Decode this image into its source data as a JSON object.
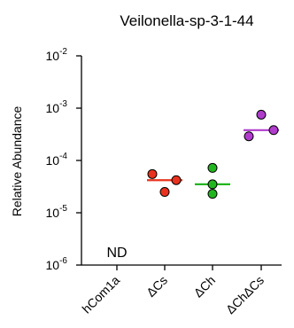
{
  "chart_data": {
    "type": "scatter",
    "title": "Veilonella-sp-3-1-44",
    "ylabel": "Relative Abundance",
    "yscale": "log",
    "ylim": [
      1e-06,
      0.01
    ],
    "yticks": [
      {
        "value": 0.01,
        "base": "10",
        "exp": "-2"
      },
      {
        "value": 0.001,
        "base": "10",
        "exp": "-3"
      },
      {
        "value": 0.0001,
        "base": "10",
        "exp": "-4"
      },
      {
        "value": 1e-05,
        "base": "10",
        "exp": "-5"
      },
      {
        "value": 1e-06,
        "base": "10",
        "exp": "-6"
      }
    ],
    "categories": [
      "hCom1a",
      "ΔCs",
      "ΔCh",
      "ΔChΔCs"
    ],
    "groups": [
      {
        "category": "hCom1a",
        "points": [],
        "median": null,
        "color": "#000000",
        "annotation": "ND"
      },
      {
        "category": "ΔCs",
        "points": [
          5.5e-05,
          4.2e-05,
          2.5e-05
        ],
        "median": 4.2e-05,
        "color": "#e8321e"
      },
      {
        "category": "ΔCh",
        "points": [
          7.2e-05,
          3.5e-05,
          2.3e-05
        ],
        "median": 3.5e-05,
        "color": "#23b520"
      },
      {
        "category": "ΔChΔCs",
        "points": [
          0.00075,
          0.00038,
          0.00029
        ],
        "median": 0.00038,
        "color": "#b03ccc"
      }
    ],
    "grid": false,
    "legend": "none"
  }
}
